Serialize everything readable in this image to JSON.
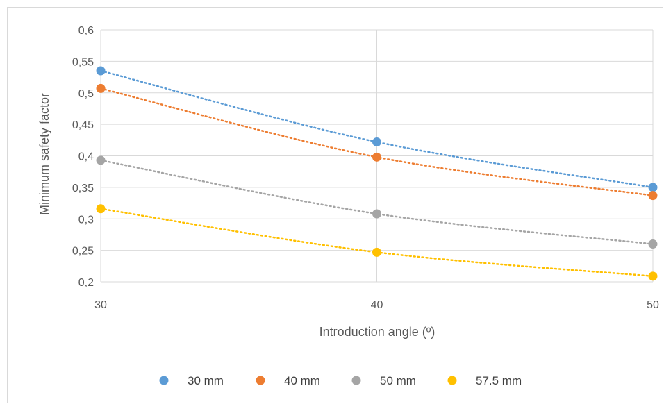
{
  "chart_data": {
    "type": "scatter",
    "title": "",
    "xlabel": "Introduction angle (º)",
    "ylabel": "Minimum safety factor",
    "x": [
      30,
      40,
      50
    ],
    "xlim": [
      30,
      50
    ],
    "ylim": [
      0.2,
      0.6
    ],
    "x_ticks": [
      "30",
      "40",
      "50"
    ],
    "y_ticks": [
      "0,2",
      "0,25",
      "0,3",
      "0,35",
      "0,4",
      "0,45",
      "0,5",
      "0,55",
      "0,6"
    ],
    "grid": true,
    "trendline": "dotted",
    "legend_position": "bottom",
    "series": [
      {
        "name": "30 mm",
        "color": "#5b9bd5",
        "values": [
          0.535,
          0.422,
          0.35
        ]
      },
      {
        "name": "40 mm",
        "color": "#ed7d31",
        "values": [
          0.507,
          0.398,
          0.337
        ]
      },
      {
        "name": "50 mm",
        "color": "#a5a5a5",
        "values": [
          0.393,
          0.308,
          0.26
        ]
      },
      {
        "name": "57.5 mm",
        "color": "#ffc000",
        "values": [
          0.316,
          0.247,
          0.209
        ]
      }
    ]
  }
}
